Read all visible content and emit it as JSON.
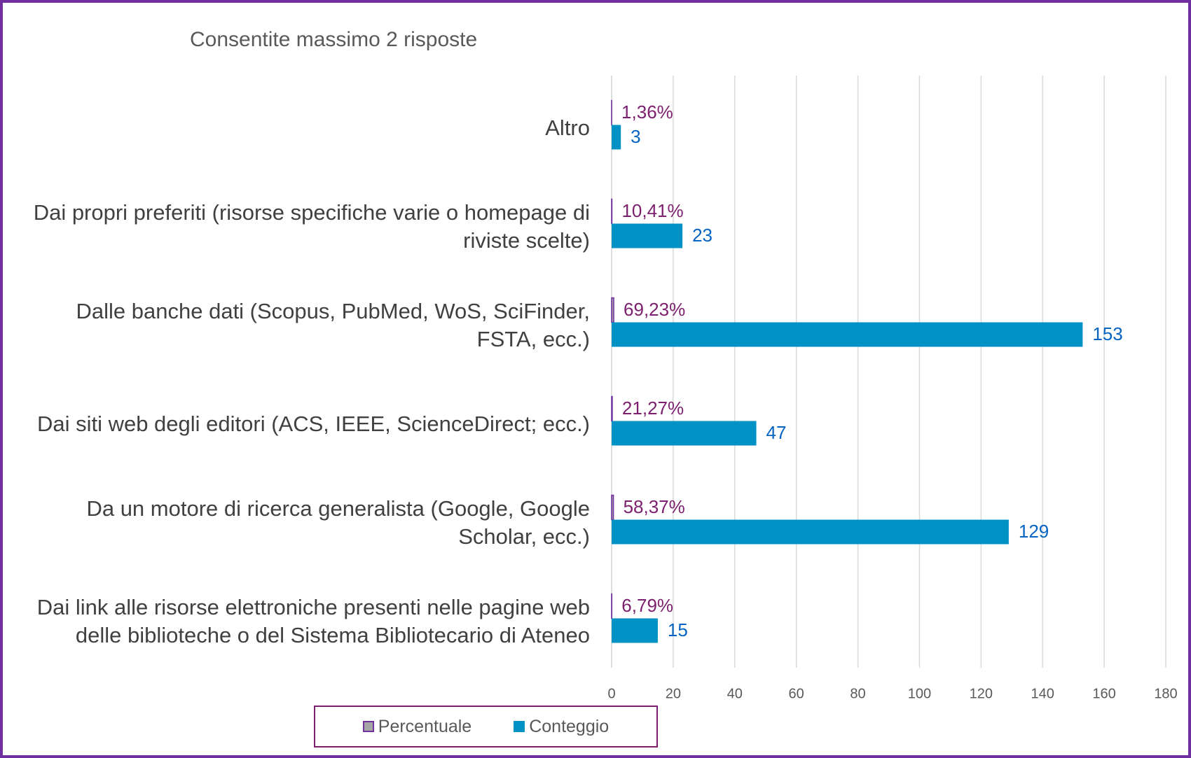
{
  "chart_data": {
    "type": "bar",
    "orientation": "horizontal",
    "title": "Consentite massimo 2 risposte",
    "categories": [
      "Altro",
      "Dai propri preferiti (risorse specifiche varie o homepage di riviste scelte)",
      "Dalle banche dati (Scopus, PubMed, WoS, SciFinder, FSTA, ecc.)",
      "Dai siti web degli editori (ACS, IEEE, ScienceDirect; ecc.)",
      "Da un motore di ricerca generalista (Google, Google Scholar, ecc.)",
      "Dai link alle risorse elettroniche presenti nelle pagine web delle biblioteche o del Sistema Bibliotecario di Ateneo"
    ],
    "series": [
      {
        "name": "Percentuale",
        "color": "#a5a5a5",
        "values": [
          0.0136,
          0.1041,
          0.6923,
          0.2127,
          0.5837,
          0.0679
        ],
        "value_labels": [
          "1,36%",
          "10,41%",
          "69,23%",
          "21,27%",
          "58,37%",
          "6,79%"
        ]
      },
      {
        "name": "Conteggio",
        "color": "#0091c5",
        "values": [
          3,
          23,
          153,
          47,
          129,
          15
        ]
      }
    ],
    "xlim": [
      0,
      180
    ],
    "xticks": [
      0,
      20,
      40,
      60,
      80,
      100,
      120,
      140,
      160,
      180
    ],
    "grid": true,
    "legend": "bottom"
  }
}
